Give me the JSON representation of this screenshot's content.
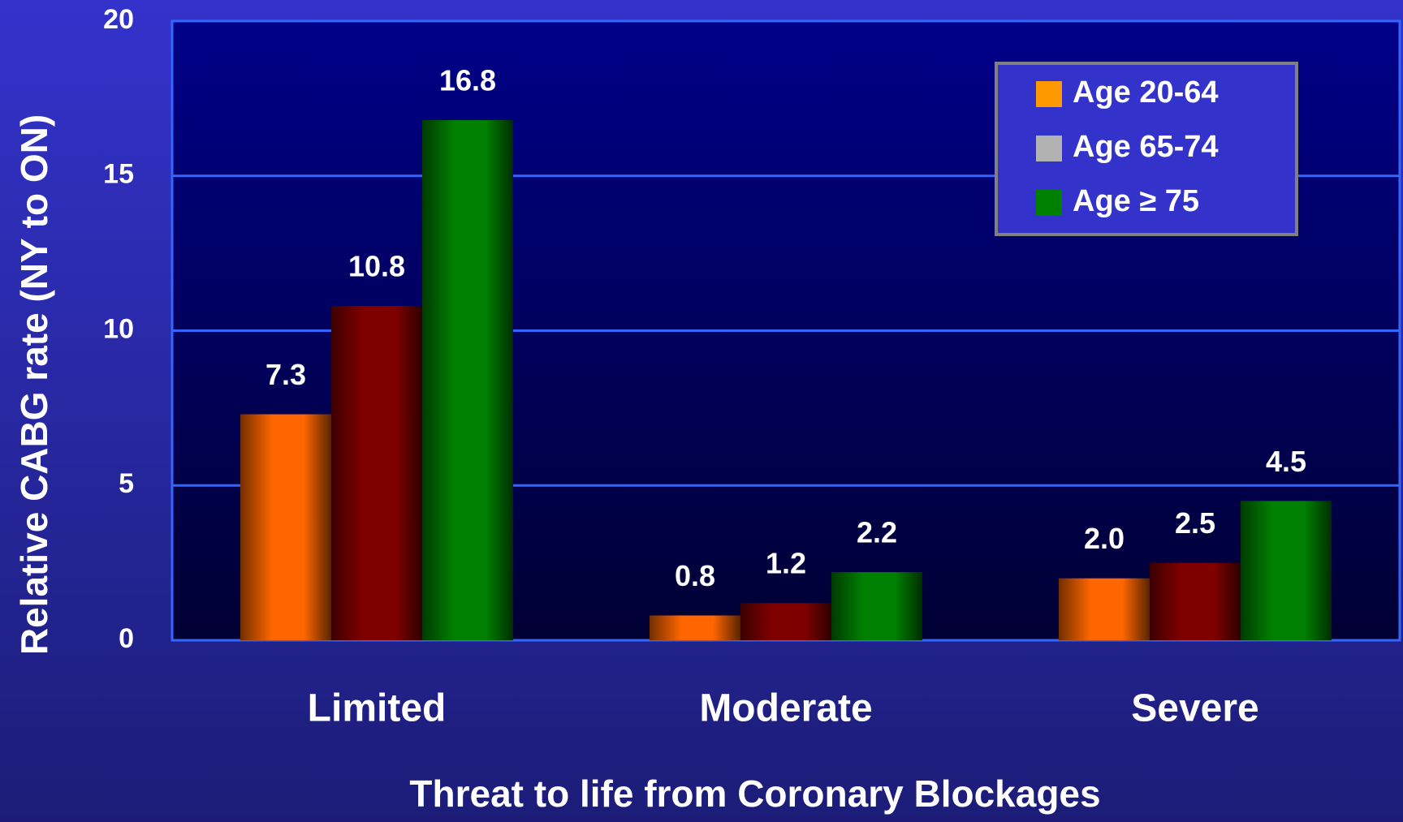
{
  "chart_data": {
    "type": "bar",
    "x_label": "Threat to life from Coronary Blockages",
    "y_label": "Relative CABG rate (NY to ON)",
    "categories": [
      "Limited",
      "Moderate",
      "Severe"
    ],
    "series": [
      {
        "name": "Age 20-64",
        "color": "#ff6600",
        "legend_color": "#ff9900",
        "values": [
          7.3,
          0.8,
          2.0
        ],
        "value_labels": [
          "7.3",
          "0.8",
          "2.0"
        ]
      },
      {
        "name": "Age 65-74",
        "color": "#800000",
        "legend_color": "#b2b2b2",
        "values": [
          10.8,
          1.2,
          2.5
        ],
        "value_labels": [
          "10.8",
          "1.2",
          "2.5"
        ]
      },
      {
        "name": "Age ≥ 75",
        "color": "#008000",
        "legend_color": "#008000",
        "values": [
          16.8,
          2.2,
          4.5
        ],
        "value_labels": [
          "16.8",
          "2.2",
          "4.5"
        ]
      }
    ],
    "ylim": [
      0,
      20
    ],
    "yticks": [
      0,
      5,
      10,
      15,
      20
    ],
    "grid": true,
    "legend": "upper right"
  }
}
